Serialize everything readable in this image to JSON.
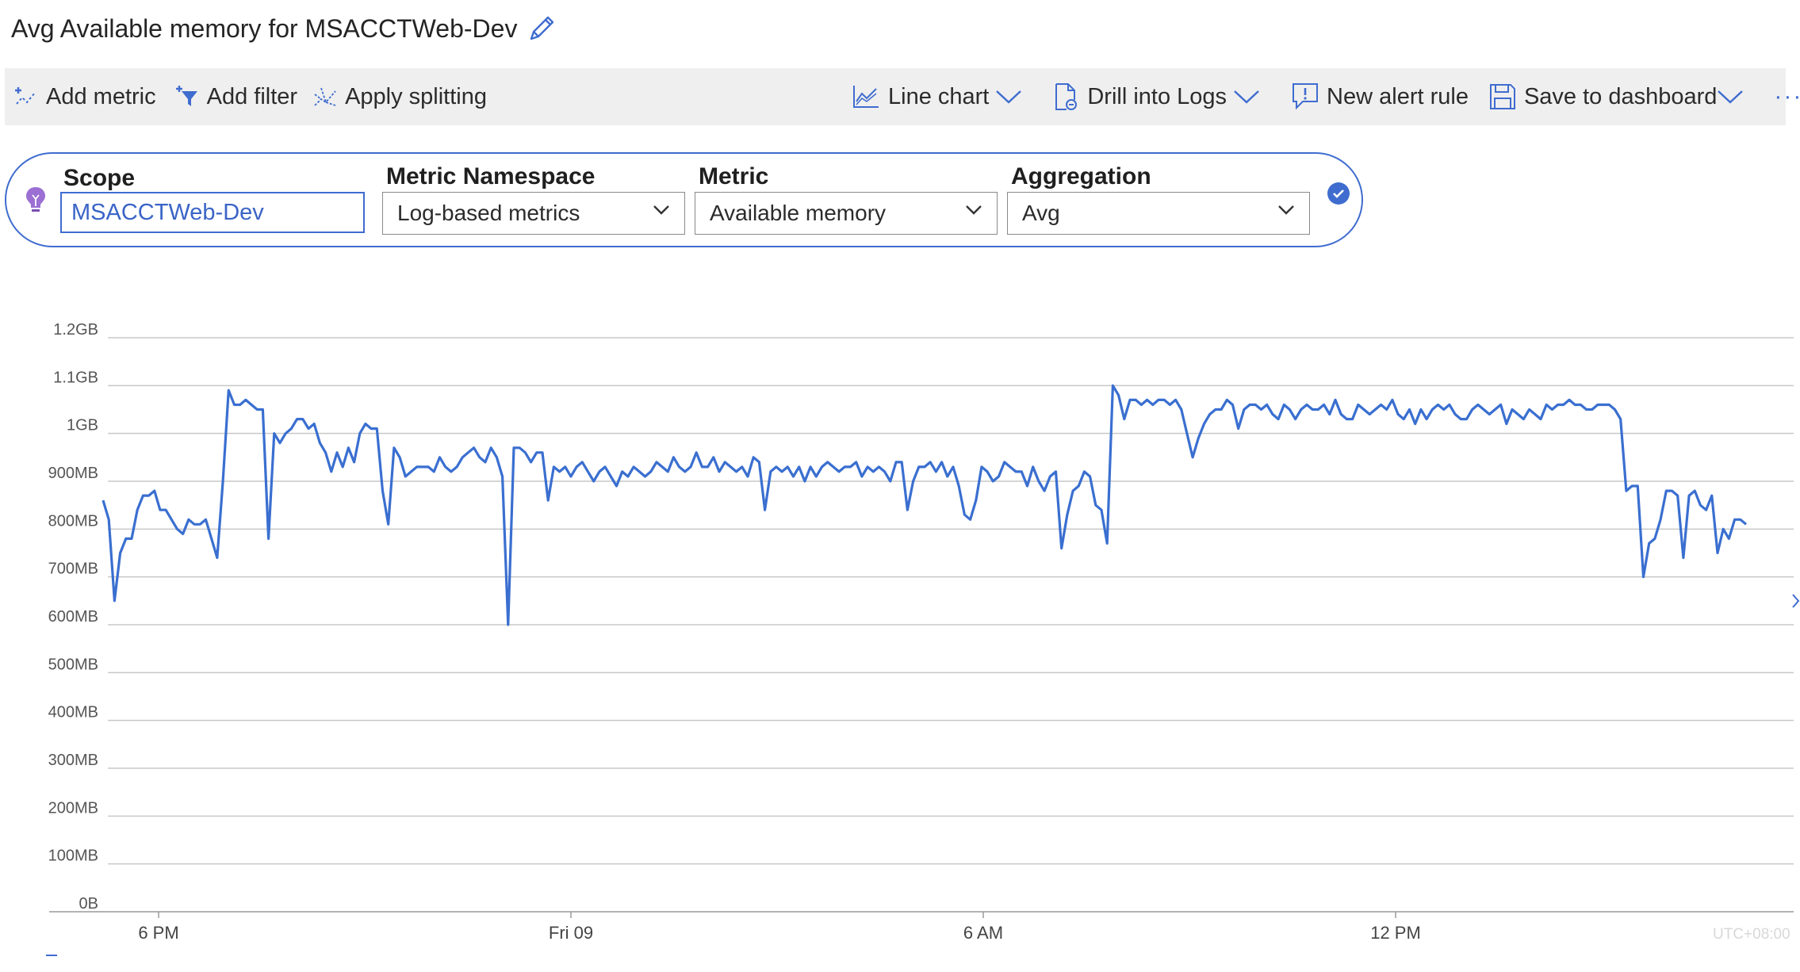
{
  "header": {
    "title": "Avg Available memory for MSACCTWeb-Dev"
  },
  "toolbar": {
    "add_metric": "Add metric",
    "add_filter": "Add filter",
    "apply_splitting": "Apply splitting",
    "line_chart": "Line chart",
    "drill_into_logs": "Drill into Logs",
    "new_alert_rule": "New alert rule",
    "save_to_dashboard": "Save to dashboard",
    "more": "···"
  },
  "picker": {
    "scope_label": "Scope",
    "scope_value": "MSACCTWeb-Dev",
    "namespace_label": "Metric Namespace",
    "namespace_value": "Log-based metrics",
    "metric_label": "Metric",
    "metric_value": "Available memory",
    "aggregation_label": "Aggregation",
    "aggregation_value": "Avg"
  },
  "colors": {
    "accent": "#3f6ccf",
    "series": "#3a6fd0",
    "grid": "#c8c8c8",
    "toolbar_bg": "#efefef"
  },
  "chart_data": {
    "type": "line",
    "title": "",
    "xlabel": "",
    "ylabel": "",
    "ylim": [
      0,
      1.2
    ],
    "y_unit": "GB",
    "y_ticks": [
      "1.2GB",
      "1.1GB",
      "1GB",
      "900MB",
      "800MB",
      "700MB",
      "600MB",
      "500MB",
      "400MB",
      "300MB",
      "200MB",
      "100MB",
      "0B"
    ],
    "x_ticks": [
      "6 PM",
      "Fri 09",
      "6 AM",
      "12 PM"
    ],
    "timezone": "UTC+08:00",
    "grid": true,
    "legend": "none",
    "series": [
      {
        "values": [
          0.86,
          0.82,
          0.65,
          0.75,
          0.78,
          0.78,
          0.84,
          0.87,
          0.87,
          0.88,
          0.84,
          0.84,
          0.82,
          0.8,
          0.79,
          0.82,
          0.81,
          0.81,
          0.82,
          0.78,
          0.74,
          0.9,
          1.09,
          1.06,
          1.06,
          1.07,
          1.06,
          1.05,
          1.05,
          0.78,
          1.0,
          0.98,
          1.0,
          1.01,
          1.03,
          1.03,
          1.01,
          1.02,
          0.98,
          0.96,
          0.92,
          0.96,
          0.93,
          0.97,
          0.94,
          1.0,
          1.02,
          1.01,
          1.01,
          0.88,
          0.81,
          0.97,
          0.95,
          0.91,
          0.92,
          0.93,
          0.93,
          0.93,
          0.92,
          0.95,
          0.93,
          0.92,
          0.93,
          0.95,
          0.96,
          0.97,
          0.95,
          0.94,
          0.97,
          0.95,
          0.91,
          0.6,
          0.97,
          0.97,
          0.96,
          0.94,
          0.96,
          0.96,
          0.86,
          0.93,
          0.92,
          0.93,
          0.91,
          0.93,
          0.94,
          0.92,
          0.9,
          0.92,
          0.93,
          0.91,
          0.89,
          0.92,
          0.91,
          0.93,
          0.92,
          0.91,
          0.92,
          0.94,
          0.93,
          0.92,
          0.95,
          0.93,
          0.92,
          0.93,
          0.96,
          0.93,
          0.93,
          0.95,
          0.92,
          0.94,
          0.93,
          0.92,
          0.93,
          0.91,
          0.95,
          0.94,
          0.84,
          0.92,
          0.93,
          0.92,
          0.93,
          0.91,
          0.93,
          0.9,
          0.93,
          0.91,
          0.93,
          0.94,
          0.93,
          0.92,
          0.93,
          0.93,
          0.94,
          0.91,
          0.93,
          0.92,
          0.93,
          0.92,
          0.9,
          0.94,
          0.94,
          0.84,
          0.9,
          0.93,
          0.93,
          0.94,
          0.92,
          0.94,
          0.91,
          0.93,
          0.89,
          0.83,
          0.82,
          0.86,
          0.93,
          0.92,
          0.9,
          0.91,
          0.94,
          0.93,
          0.92,
          0.92,
          0.89,
          0.93,
          0.9,
          0.88,
          0.91,
          0.92,
          0.76,
          0.83,
          0.88,
          0.89,
          0.92,
          0.91,
          0.85,
          0.84,
          0.77,
          1.1,
          1.08,
          1.03,
          1.07,
          1.07,
          1.06,
          1.07,
          1.06,
          1.07,
          1.07,
          1.06,
          1.07,
          1.05,
          1.0,
          0.95,
          0.99,
          1.02,
          1.04,
          1.05,
          1.05,
          1.07,
          1.06,
          1.01,
          1.05,
          1.06,
          1.06,
          1.05,
          1.06,
          1.04,
          1.03,
          1.06,
          1.05,
          1.03,
          1.05,
          1.06,
          1.05,
          1.05,
          1.06,
          1.04,
          1.07,
          1.04,
          1.03,
          1.03,
          1.06,
          1.05,
          1.04,
          1.05,
          1.06,
          1.05,
          1.07,
          1.04,
          1.03,
          1.05,
          1.02,
          1.05,
          1.03,
          1.05,
          1.06,
          1.05,
          1.06,
          1.04,
          1.03,
          1.03,
          1.05,
          1.06,
          1.05,
          1.04,
          1.05,
          1.06,
          1.02,
          1.05,
          1.04,
          1.03,
          1.05,
          1.04,
          1.03,
          1.06,
          1.05,
          1.06,
          1.06,
          1.07,
          1.06,
          1.06,
          1.05,
          1.05,
          1.06,
          1.06,
          1.06,
          1.05,
          1.03,
          0.88,
          0.89,
          0.89,
          0.7,
          0.77,
          0.78,
          0.82,
          0.88,
          0.88,
          0.87,
          0.74,
          0.87,
          0.88,
          0.85,
          0.84,
          0.87,
          0.75,
          0.8,
          0.78,
          0.82,
          0.82,
          0.81
        ]
      }
    ]
  }
}
